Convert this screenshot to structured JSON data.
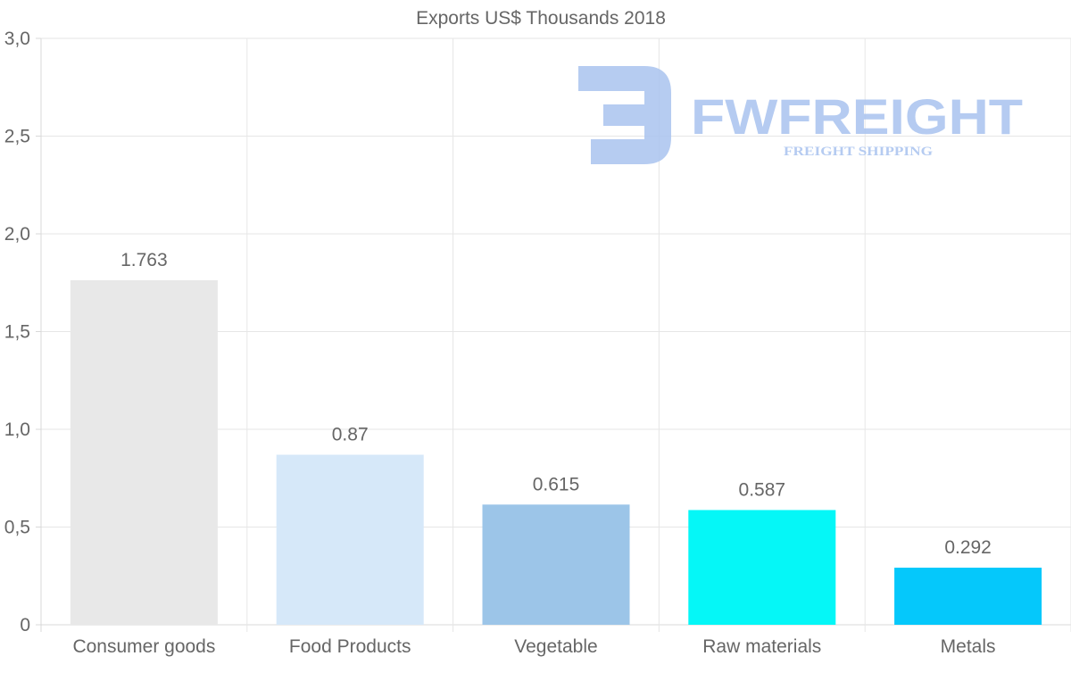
{
  "chart_data": {
    "type": "bar",
    "title": "Exports US$ Thousands 2018",
    "categories": [
      "Consumer goods",
      "Food Products",
      "Vegetable",
      "Raw materials",
      "Metals"
    ],
    "values": [
      1.763,
      0.87,
      0.615,
      0.587,
      0.292
    ],
    "data_labels": [
      "1.763",
      "0.87",
      "0.615",
      "0.587",
      "0.292"
    ],
    "colors": [
      "#e8e8e8",
      "#d6e8f9",
      "#9cc5e8",
      "#05f7f7",
      "#05c8fb"
    ],
    "ylim": [
      0,
      3
    ],
    "yticks": [
      0,
      0.5,
      1,
      1.5,
      2,
      2.5,
      3
    ],
    "ytick_labels": [
      "0",
      "0,5",
      "1,0",
      "1,5",
      "2,0",
      "2,5",
      "3,0"
    ],
    "xlabel": "",
    "ylabel": "",
    "grid": true,
    "legend": "none"
  },
  "watermark": {
    "brand": "FWFREIGHT",
    "tagline": "FREIGHT SHIPPING",
    "color": "#a9c3ef"
  }
}
